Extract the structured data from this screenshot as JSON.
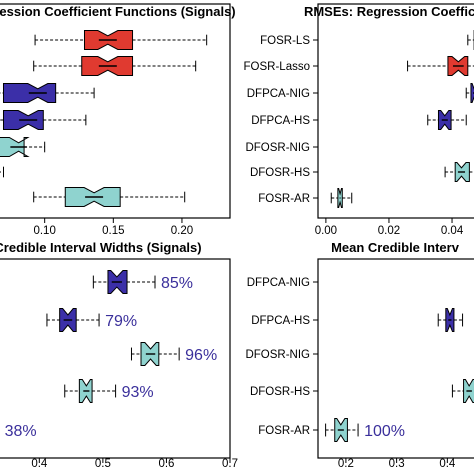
{
  "colors": {
    "red": "#e03a30",
    "navy": "#3b2fa8",
    "teal": "#8fd3cf",
    "pct_text": "#3a2f9b"
  },
  "chart_data": [
    {
      "type": "boxplot",
      "title": "ression Coefficient Functions (Signals)",
      "x_ticks": [
        "0.10",
        "0.15",
        "0.20"
      ],
      "xlim": [
        0.066,
        0.235
      ],
      "categories": [
        "",
        "",
        "",
        "",
        "",
        "",
        ""
      ],
      "boxes": [
        {
          "color": "red",
          "whisker_low": 0.093,
          "q1": 0.129,
          "median": 0.146,
          "q3": 0.164,
          "whisker_high": 0.218
        },
        {
          "color": "red",
          "whisker_low": 0.092,
          "q1": 0.127,
          "median": 0.146,
          "q3": 0.164,
          "whisker_high": 0.21
        },
        {
          "color": "navy",
          "whisker_low": 0.062,
          "q1": 0.07,
          "median": 0.095,
          "q3": 0.108,
          "whisker_high": 0.136
        },
        {
          "color": "navy",
          "whisker_low": 0.064,
          "q1": 0.07,
          "median": 0.088,
          "q3": 0.099,
          "whisker_high": 0.13
        },
        {
          "color": "teal",
          "whisker_low": 0.06,
          "q1": 0.064,
          "median": 0.081,
          "q3": 0.085,
          "whisker_high": 0.1
        },
        {
          "color": "teal",
          "whisker_low": 0.056,
          "q1": 0.06,
          "median": 0.064,
          "q3": 0.066,
          "whisker_high": 0.07
        },
        {
          "color": "teal",
          "whisker_low": 0.092,
          "q1": 0.115,
          "median": 0.136,
          "q3": 0.155,
          "whisker_high": 0.202
        }
      ]
    },
    {
      "type": "boxplot",
      "title": "RMSEs: Regression Coefficie",
      "x_ticks": [
        "0.00",
        "0.02",
        "0.04"
      ],
      "xlim": [
        -0.0025,
        0.0476
      ],
      "categories": [
        "FOSR-LS",
        "FOSR-Lasso",
        "DFPCA-NIG",
        "DFPCA-HS",
        "DFOSR-NIG",
        "DFOSR-HS",
        "FOSR-AR"
      ],
      "boxes": [
        {
          "color": "red",
          "whisker_low": 0.045,
          "q1": 0.047,
          "median": 0.049,
          "q3": 0.051,
          "whisker_high": 0.053
        },
        {
          "color": "red",
          "whisker_low": 0.0259,
          "q1": 0.0387,
          "median": 0.042,
          "q3": 0.045,
          "whisker_high": 0.054
        },
        {
          "color": "navy",
          "whisker_low": 0.0445,
          "q1": 0.046,
          "median": 0.047,
          "q3": 0.048,
          "whisker_high": 0.049
        },
        {
          "color": "navy",
          "whisker_low": 0.0323,
          "q1": 0.0357,
          "median": 0.0377,
          "q3": 0.0397,
          "whisker_high": 0.0445
        },
        null,
        {
          "color": "teal",
          "whisker_low": 0.0378,
          "q1": 0.041,
          "median": 0.043,
          "q3": 0.0455,
          "whisker_high": 0.05
        },
        {
          "color": "teal",
          "whisker_low": 0.0017,
          "q1": 0.0038,
          "median": 0.0045,
          "q3": 0.0052,
          "whisker_high": 0.0082
        }
      ]
    },
    {
      "type": "boxplot",
      "title": "Credible Interval Widths (Signals)",
      "x_ticks": [
        "0.4",
        "0.5",
        "0.6",
        "0.7"
      ],
      "xlim": [
        0.335,
        0.7
      ],
      "categories": [
        "",
        "",
        "",
        "",
        ""
      ],
      "boxes": [
        {
          "color": "navy",
          "whisker_low": 0.485,
          "q1": 0.508,
          "median": 0.522,
          "q3": 0.538,
          "whisker_high": 0.582,
          "label": "85%"
        },
        {
          "color": "navy",
          "whisker_low": 0.412,
          "q1": 0.432,
          "median": 0.445,
          "q3": 0.458,
          "whisker_high": 0.494,
          "label": "79%"
        },
        {
          "color": "teal",
          "whisker_low": 0.545,
          "q1": 0.56,
          "median": 0.575,
          "q3": 0.588,
          "whisker_high": 0.62,
          "label": "96%"
        },
        {
          "color": "teal",
          "whisker_low": 0.44,
          "q1": 0.463,
          "median": 0.474,
          "q3": 0.483,
          "whisker_high": 0.52,
          "label": "93%"
        },
        {
          "color": "teal",
          "whisker_low": 0.3,
          "q1": 0.31,
          "median": 0.32,
          "q3": 0.33,
          "whisker_high": 0.336,
          "label": "38%"
        }
      ]
    },
    {
      "type": "boxplot",
      "title": "Mean Credible Interv",
      "x_ticks": [
        "0.2",
        "0.3",
        "0.4"
      ],
      "xlim": [
        0.145,
        0.4565
      ],
      "categories": [
        "DFPCA-NIG",
        "DFPCA-HS",
        "DFOSR-NIG",
        "DFOSR-HS",
        "FOSR-AR"
      ],
      "boxes": [
        null,
        {
          "color": "navy",
          "whisker_low": 0.382,
          "q1": 0.397,
          "median": 0.405,
          "q3": 0.413,
          "whisker_high": 0.43
        },
        null,
        {
          "color": "teal",
          "whisker_low": 0.41,
          "q1": 0.432,
          "median": 0.443,
          "q3": 0.455,
          "whisker_high": 0.47
        },
        {
          "color": "teal",
          "whisker_low": 0.16,
          "q1": 0.178,
          "median": 0.19,
          "q3": 0.203,
          "whisker_high": 0.224,
          "label": "100%"
        }
      ]
    }
  ]
}
